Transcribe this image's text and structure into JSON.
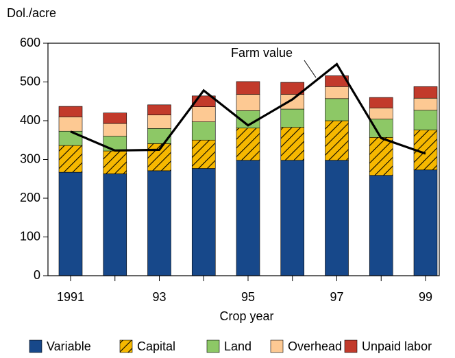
{
  "chart_data": {
    "type": "stacked_bar",
    "y_label": "Dol./acre",
    "x_label": "Crop year",
    "categories": [
      "1991",
      null,
      "93",
      null,
      "95",
      null,
      "97",
      null,
      "99"
    ],
    "series": [
      {
        "name": "Variable",
        "color": "#17488a",
        "values": [
          267,
          263,
          271,
          277,
          298,
          298,
          298,
          259,
          273
        ]
      },
      {
        "name": "Capital",
        "color": "#f6b800",
        "pattern": "hatch",
        "values": [
          69,
          59,
          70,
          73,
          83,
          85,
          102,
          98,
          103
        ]
      },
      {
        "name": "Land",
        "color": "#8dc866",
        "values": [
          37,
          38,
          39,
          47,
          45,
          47,
          57,
          47,
          51
        ]
      },
      {
        "name": "Overhead",
        "color": "#fdc993",
        "values": [
          37,
          33,
          35,
          39,
          42,
          38,
          31,
          29,
          31
        ]
      },
      {
        "name": "Unpaid labor",
        "color": "#c23a2b",
        "values": [
          27,
          27,
          26,
          28,
          33,
          31,
          28,
          27,
          30
        ]
      }
    ],
    "line": {
      "name": "Farm value",
      "color": "#000000",
      "values": [
        372,
        323,
        325,
        478,
        388,
        455,
        546,
        355,
        315
      ]
    },
    "ylim": [
      0,
      600
    ],
    "yticks": [
      0,
      100,
      200,
      300,
      400,
      500,
      600
    ]
  }
}
